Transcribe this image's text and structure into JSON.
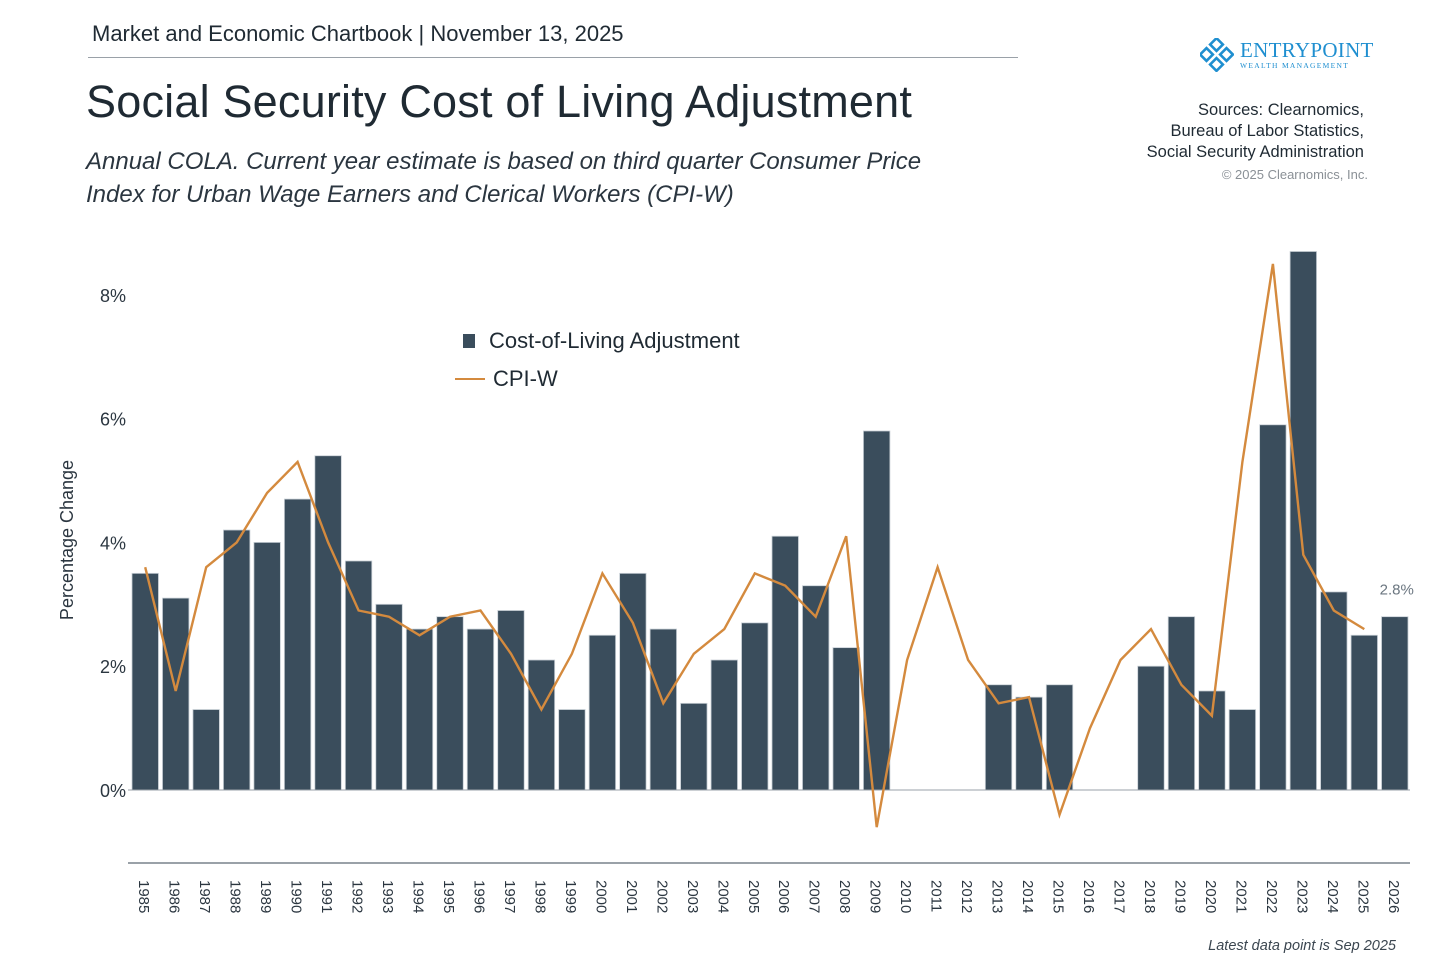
{
  "header": {
    "chartbook_label": "Market and Economic Chartbook | November 13, 2025",
    "title": "Social Security Cost of Living Adjustment",
    "subtitle_line1": "Annual COLA. Current year estimate is based on third quarter Consumer Price",
    "subtitle_line2": "Index for Urban Wage Earners and Clerical Workers (CPI-W)"
  },
  "logo": {
    "name": "ENTRYPOINT",
    "tagline": "WEALTH MANAGEMENT",
    "color": "#1f8fd0"
  },
  "sources": {
    "line1": "Sources: Clearnomics,",
    "line2": "Bureau of Labor Statistics,",
    "line3": "Social Security Administration",
    "copyright": "© 2025 Clearnomics, Inc."
  },
  "footnote": "Latest data point is Sep 2025",
  "colors": {
    "bar": "#3a4d5c",
    "line": "#d48a3e",
    "axis": "#9aa1a8",
    "annotation": "#6b7680"
  },
  "chart_data": {
    "type": "bar",
    "title": "Social Security Cost of Living Adjustment",
    "xlabel": "",
    "ylabel": "Percentage Change",
    "ylim": [
      -1.2,
      8.9
    ],
    "yticks": [
      0,
      2,
      4,
      6,
      8
    ],
    "ytick_labels": [
      "0%",
      "2%",
      "4%",
      "6%",
      "8%"
    ],
    "grid": false,
    "legend_position": "top-center",
    "categories": [
      "1985",
      "1986",
      "1987",
      "1988",
      "1989",
      "1990",
      "1991",
      "1992",
      "1993",
      "1994",
      "1995",
      "1996",
      "1997",
      "1998",
      "1999",
      "2000",
      "2001",
      "2002",
      "2003",
      "2004",
      "2005",
      "2006",
      "2007",
      "2008",
      "2009",
      "2010",
      "2011",
      "2012",
      "2013",
      "2014",
      "2015",
      "2016",
      "2017",
      "2018",
      "2019",
      "2020",
      "2021",
      "2022",
      "2023",
      "2024",
      "2025",
      "2026"
    ],
    "series": [
      {
        "name": "Cost-of-Living Adjustment",
        "type": "bar",
        "values": [
          3.5,
          3.1,
          1.3,
          4.2,
          4.0,
          4.7,
          5.4,
          3.7,
          3.0,
          2.6,
          2.8,
          2.6,
          2.9,
          2.1,
          1.3,
          2.5,
          3.5,
          2.6,
          1.4,
          2.1,
          2.7,
          4.1,
          3.3,
          2.3,
          5.8,
          0.0,
          0.0,
          0.0,
          1.7,
          1.5,
          1.7,
          0.0,
          0.0,
          2.0,
          2.8,
          1.6,
          1.3,
          5.9,
          8.7,
          3.2,
          2.5,
          2.8
        ]
      },
      {
        "name": "CPI-W",
        "type": "line",
        "values": [
          3.6,
          1.6,
          3.6,
          4.0,
          4.8,
          5.3,
          4.0,
          2.9,
          2.8,
          2.5,
          2.8,
          2.9,
          2.2,
          1.3,
          2.2,
          3.5,
          2.7,
          1.4,
          2.2,
          2.6,
          3.5,
          3.3,
          2.8,
          4.1,
          -0.6,
          2.1,
          3.6,
          2.1,
          1.4,
          1.5,
          -0.4,
          1.0,
          2.1,
          2.6,
          1.7,
          1.2,
          5.3,
          8.5,
          3.8,
          2.9,
          2.6,
          null
        ]
      }
    ],
    "annotations": [
      {
        "category": "2026",
        "text": "2.8%"
      }
    ]
  }
}
